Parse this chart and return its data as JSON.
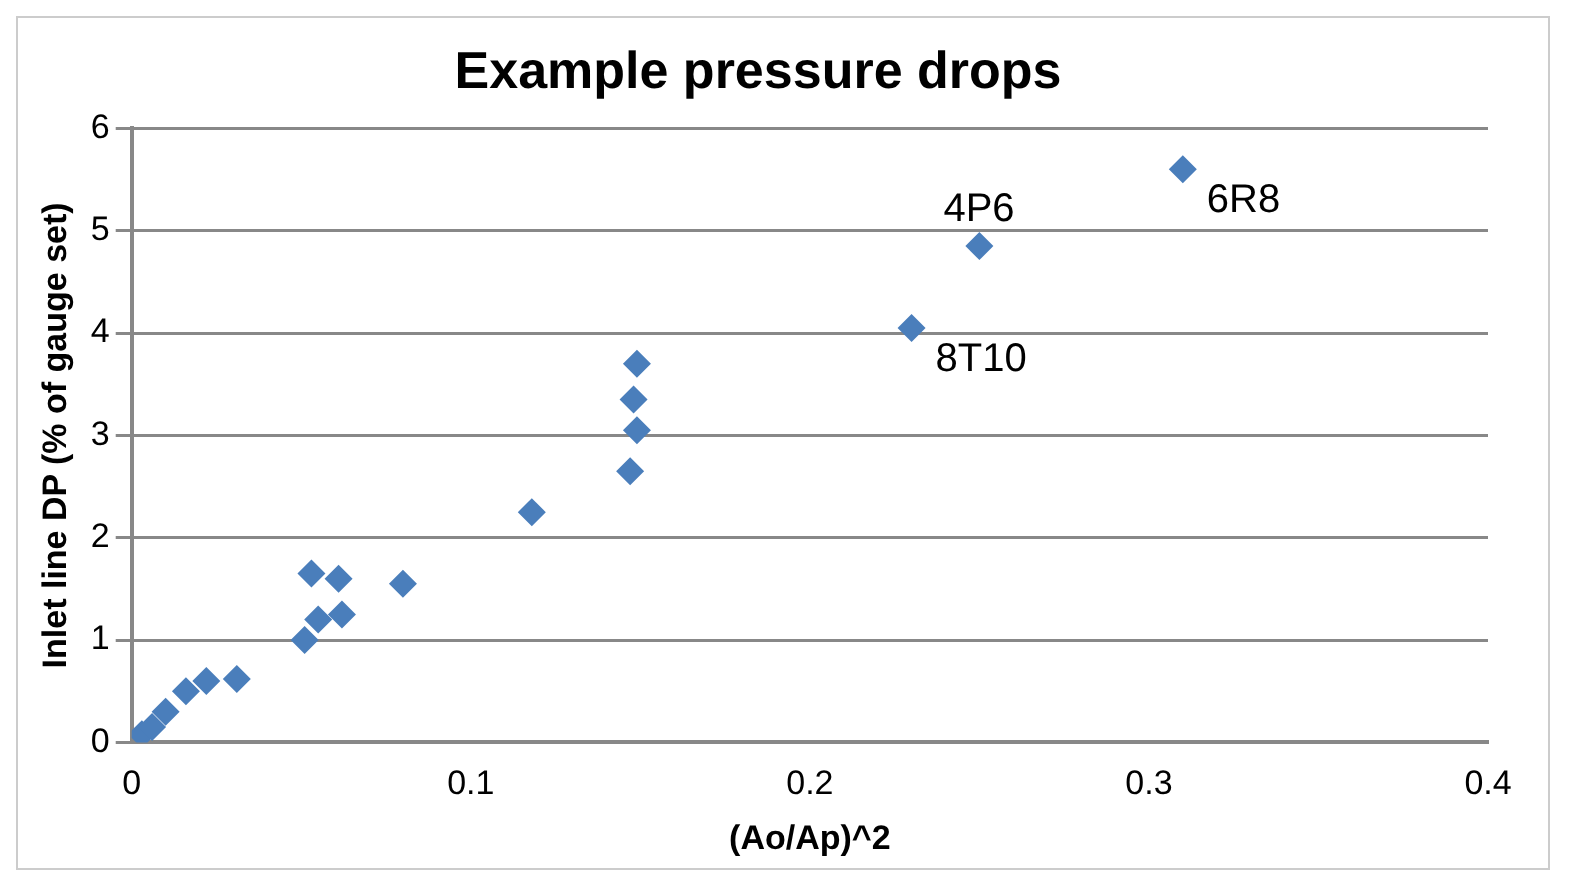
{
  "chart_data": {
    "type": "scatter",
    "title": "Example pressure drops",
    "xlabel": "(Ao/Ap)^2",
    "ylabel": "Inlet line DP (% of gauge set)",
    "series": [
      {
        "color": "#4a7ebb",
        "x": [
          0.003,
          0.006,
          0.01,
          0.016,
          0.022,
          0.031,
          0.051,
          0.053,
          0.055,
          0.061,
          0.062,
          0.08,
          0.118,
          0.147,
          0.149,
          0.148,
          0.149,
          0.23,
          0.25,
          0.31
        ],
        "values": [
          0.08,
          0.15,
          0.3,
          0.5,
          0.6,
          0.62,
          1.0,
          1.65,
          1.2,
          1.6,
          1.25,
          1.55,
          2.25,
          2.65,
          3.05,
          3.35,
          3.7,
          4.05,
          4.85,
          5.6
        ]
      }
    ],
    "xlim": [
      0,
      0.4
    ],
    "xticks": [
      0,
      0.1,
      0.2,
      0.3,
      0.4
    ],
    "ylim": [
      0,
      6
    ],
    "yticks": [
      0,
      1,
      2,
      3,
      4,
      5,
      6
    ],
    "grid": "y",
    "legend": false,
    "marker": "diamond",
    "annotations": [
      {
        "text": "4P6",
        "x": 0.25,
        "y": 4.85
      },
      {
        "text": "6R8",
        "x": 0.31,
        "y": 5.6
      },
      {
        "text": "8T10",
        "x": 0.23,
        "y": 4.05
      }
    ]
  }
}
